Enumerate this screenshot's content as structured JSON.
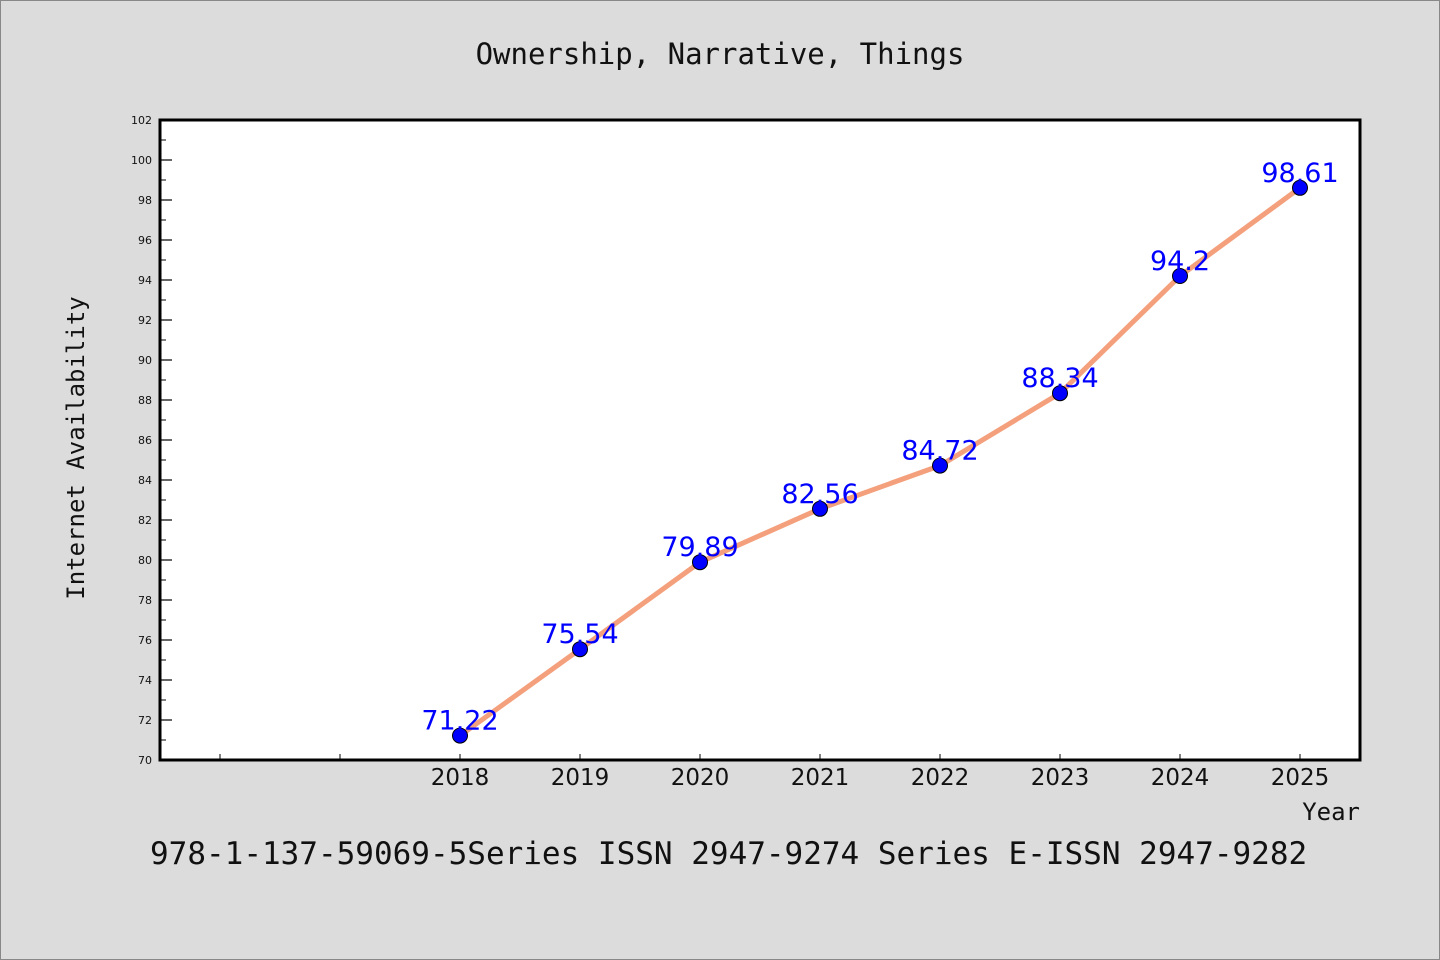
{
  "chart_data": {
    "type": "line",
    "title": "Ownership, Narrative, Things",
    "xlabel": "Year",
    "ylabel": "Internet Availability",
    "categories": [
      "",
      "",
      "2018",
      "2019",
      "2020",
      "2021",
      "2022",
      "2023",
      "2024",
      "2025"
    ],
    "series": [
      {
        "values": [
          null,
          null,
          71.22,
          75.54,
          79.89,
          82.56,
          84.72,
          88.34,
          94.2,
          98.61
        ],
        "labels": [
          "",
          "",
          "71.22",
          "75.54",
          "79.89",
          "82.56",
          "84.72",
          "88.34",
          "94.2",
          "98.61"
        ]
      }
    ],
    "ylim": [
      70,
      102
    ],
    "yticks": [
      70,
      72,
      74,
      76,
      78,
      80,
      82,
      84,
      86,
      88,
      90,
      92,
      94,
      96,
      98,
      100,
      102
    ],
    "ytick_labels": [
      "70",
      "72",
      "74",
      "76",
      "78",
      "80",
      "82",
      "84",
      "86",
      "88",
      "90",
      "92",
      "94",
      "96",
      "98",
      "100",
      "102"
    ],
    "grid": false,
    "colors": {
      "line": "#f4a07c",
      "marker": "#0000ff",
      "data_label": "#0000ff",
      "axes": "#000000",
      "background": "#dcdcdc",
      "plot_background": "#ffffff"
    }
  },
  "footer": {
    "text": "978-1-137-59069-5Series ISSN 2947-9274 Series E-ISSN 2947-9282"
  }
}
